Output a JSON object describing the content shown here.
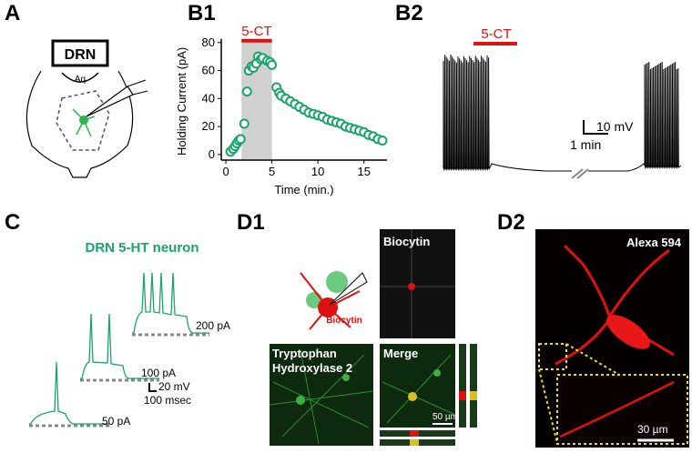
{
  "panels": {
    "A": {
      "label": "A",
      "box": "DRN",
      "aq": "Aq"
    },
    "B1": {
      "label": "B1"
    },
    "B2": {
      "label": "B2",
      "drug": "5-CT",
      "scale_v": "10 mV",
      "scale_t": "1 min"
    },
    "C": {
      "label": "C",
      "title": "DRN 5-HT neuron",
      "steps": [
        "200 pA",
        "100 pA",
        "50 pA"
      ],
      "scale_v": "20 mV",
      "scale_t": "100 msec"
    },
    "D1": {
      "label": "D1",
      "schematic_label": "Biocytin",
      "image1": "Biocytin",
      "image2": [
        "Tryptophan",
        "Hydroxylase 2"
      ],
      "image3": "Merge",
      "scale": "50 µm"
    },
    "D2": {
      "label": "D2",
      "image": "Alexa 594",
      "scale": "30 µm"
    }
  },
  "chart_data": {
    "type": "scatter",
    "annotation": "5-CT",
    "shaded_x": [
      1.7,
      5
    ],
    "xlabel": "Time (min.)",
    "ylabel": "Holding Current (pA)",
    "x": [
      0.5,
      0.8,
      1,
      1.2,
      1.4,
      1.6,
      2,
      2.3,
      2.5,
      2.8,
      3,
      3.3,
      3.5,
      3.8,
      4,
      4.5,
      4.8,
      5,
      5.5,
      5.8,
      6,
      6.5,
      7,
      7.5,
      8,
      8.5,
      9,
      9.5,
      10,
      10.5,
      11,
      11.5,
      12,
      12.5,
      13,
      13.5,
      14,
      14.5,
      15,
      15.5,
      16,
      16.5,
      17
    ],
    "values": [
      2,
      4,
      6,
      8,
      10,
      11,
      22,
      45,
      60,
      63,
      62,
      65,
      70,
      68,
      69,
      67,
      66,
      64,
      48,
      44,
      42,
      40,
      38,
      36,
      34,
      32,
      30,
      29,
      28,
      27,
      25,
      24,
      23,
      22,
      20,
      19,
      18,
      17,
      16,
      14,
      13,
      11,
      10
    ],
    "color": "#1aa36b",
    "annotation_color": "#e01010",
    "xlim": [
      -0.5,
      17.5
    ],
    "ylim": [
      -4,
      80
    ],
    "xticks": [
      0,
      5,
      10,
      15
    ],
    "yticks": [
      0,
      20,
      40,
      60,
      80
    ]
  }
}
